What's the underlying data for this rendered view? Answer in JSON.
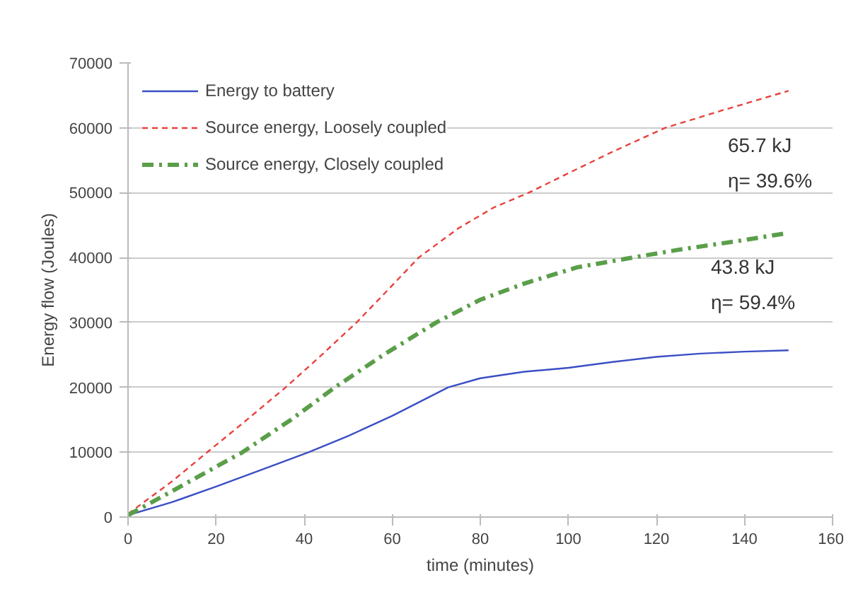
{
  "chart_data": {
    "type": "line",
    "xlabel": "time (minutes)",
    "ylabel": "Energy flow (Joules)",
    "xlim": [
      0,
      160
    ],
    "xticks": [
      0,
      20,
      40,
      60,
      80,
      100,
      120,
      140,
      160
    ],
    "ylim": [
      0,
      70000
    ],
    "yticks": [
      0,
      10000,
      20000,
      30000,
      40000,
      50000,
      60000,
      70000
    ],
    "grid": "y",
    "legend": "top left",
    "marker": "none",
    "series": [
      {
        "name": "Energy to battery",
        "color": "#3b4fc4",
        "line_style": "solid",
        "x": [
          0,
          10,
          20,
          30,
          41,
          50,
          60,
          72.7,
          80,
          90,
          100,
          110,
          120,
          130,
          140,
          150
        ],
        "values": [
          300,
          2300,
          4700,
          7200,
          10000,
          12500,
          15600,
          20000,
          21400,
          22400,
          23000,
          23900,
          24700,
          25200,
          25500,
          25700
        ]
      },
      {
        "name": "Source energy, Loosely coupled",
        "color": "#e8413c",
        "line_style": "dashed",
        "x": [
          0,
          10,
          18,
          27,
          35.8,
          44,
          51.9,
          59,
          66,
          75,
          83,
          91,
          100,
          110,
          122,
          135,
          150
        ],
        "values": [
          500,
          5500,
          10000,
          15000,
          20000,
          25000,
          30000,
          35000,
          40000,
          44500,
          47700,
          50000,
          53000,
          56300,
          60000,
          62700,
          65700
        ]
      },
      {
        "name": "Source energy, Closely coupled",
        "color": "#5a9e4a",
        "line_style": "dashdot",
        "x": [
          0,
          10,
          26,
          37,
          47,
          58,
          70,
          80,
          90,
          102,
          114.6,
          125,
          138,
          150
        ],
        "values": [
          300,
          4000,
          10000,
          15000,
          20000,
          25000,
          30000,
          33500,
          36000,
          38500,
          40000,
          41200,
          42500,
          43800
        ]
      }
    ],
    "annotations": [
      "65.7 kJ",
      "η= 39.6%",
      "43.8 kJ",
      "η= 59.4%"
    ]
  }
}
